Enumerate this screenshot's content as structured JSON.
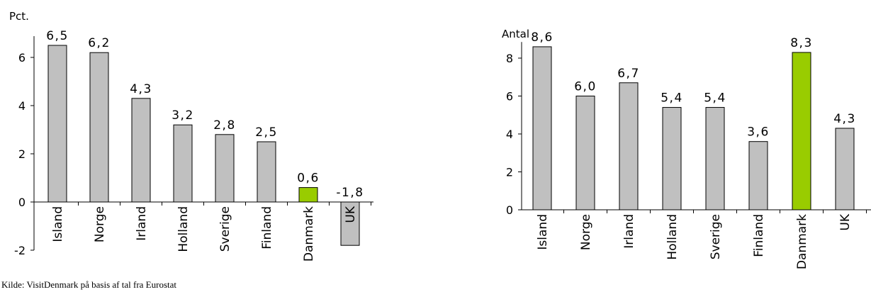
{
  "source_text": "Kilde: VisitDenmark på basis af tal fra Eurostat",
  "chart_data": [
    {
      "type": "bar",
      "ylabel": "Pct.",
      "ylim": [
        -2,
        7
      ],
      "yticks": [
        "-2",
        "0",
        "2",
        "4",
        "6"
      ],
      "categories": [
        "Island",
        "Norge",
        "Irland",
        "Holland",
        "Sverige",
        "Finland",
        "Danmark",
        "UK"
      ],
      "values": [
        6.5,
        6.2,
        4.3,
        3.2,
        2.8,
        2.5,
        0.6,
        -1.8
      ],
      "value_labels": [
        "6,5",
        "6,2",
        "4,3",
        "3,2",
        "2,8",
        "2,5",
        "0,6",
        "-1,8"
      ],
      "highlight_category": "Danmark",
      "bar_color": "#c0c0c0",
      "highlight_color": "#99cc00",
      "grid": false,
      "legend": "none"
    },
    {
      "type": "bar",
      "ylabel": "Antal",
      "ylim": [
        0,
        9
      ],
      "yticks": [
        "0",
        "2",
        "4",
        "6",
        "8"
      ],
      "categories": [
        "Island",
        "Norge",
        "Irland",
        "Holland",
        "Sverige",
        "Finland",
        "Danmark",
        "UK"
      ],
      "values": [
        8.6,
        6.0,
        6.7,
        5.4,
        5.4,
        3.6,
        8.3,
        4.3
      ],
      "value_labels": [
        "8,6",
        "6,0",
        "6,7",
        "5,4",
        "5,4",
        "3,6",
        "8,3",
        "4,3"
      ],
      "highlight_category": "Danmark",
      "bar_color": "#c0c0c0",
      "highlight_color": "#99cc00",
      "grid": false,
      "legend": "none"
    }
  ]
}
